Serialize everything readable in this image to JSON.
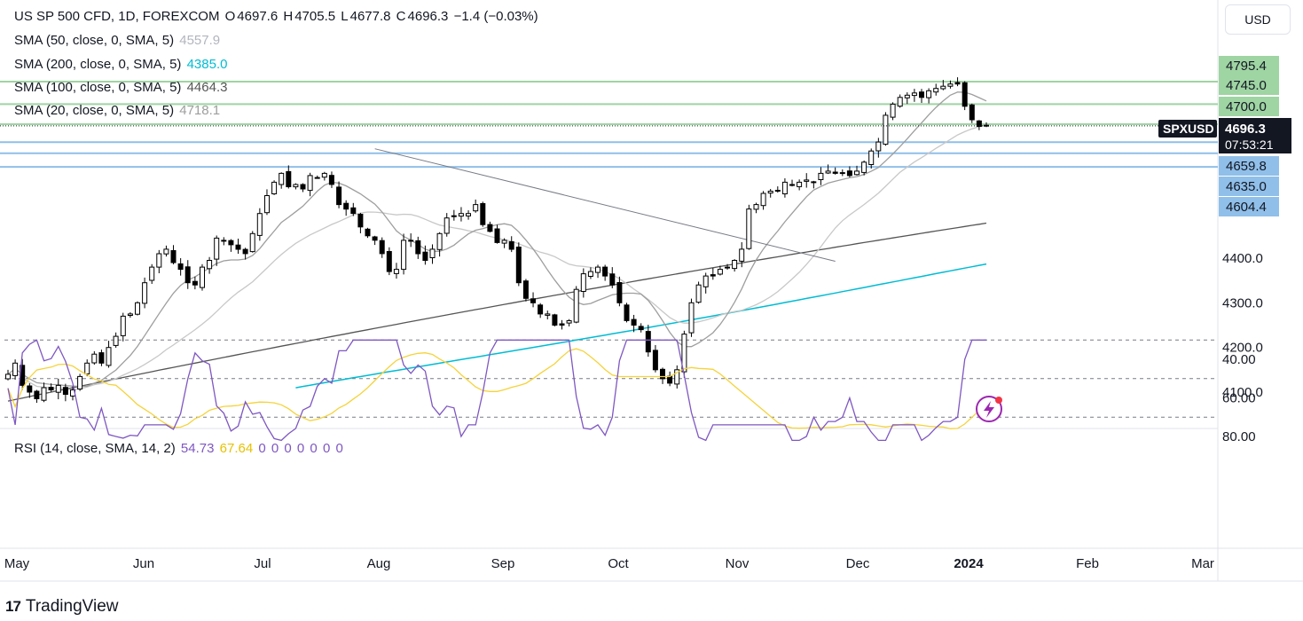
{
  "header": {
    "symbol_title": "US SP 500 CFD, 1D, FOREXCOM",
    "ohlc": [
      {
        "label": "O",
        "value": "4697.6"
      },
      {
        "label": "H",
        "value": "4705.5"
      },
      {
        "label": "L",
        "value": "4677.8"
      },
      {
        "label": "C",
        "value": "4696.3"
      }
    ],
    "change": "−1.4 (−0.03%)"
  },
  "indicators": [
    {
      "label": "SMA (50, close, 0, SMA, 5)",
      "value": "4557.9",
      "color": "#b2b5be"
    },
    {
      "label": "SMA (200, close, 0, SMA, 5)",
      "value": "4385.0",
      "color": "#00bcd4"
    },
    {
      "label": "SMA (100, close, 0, SMA, 5)",
      "value": "4464.3",
      "color": "#555555"
    },
    {
      "label": "SMA (20, close, 0, SMA, 5)",
      "value": "4718.1",
      "color": "#9e9e9e"
    }
  ],
  "rsi_legend": {
    "label": "RSI (14, close, SMA, 14, 2)",
    "rsi_value": "54.73",
    "ma_value": "67.64",
    "zeros": [
      "0",
      "0",
      "0",
      "0",
      "0",
      "0",
      "0"
    ]
  },
  "currency_button": "USD",
  "price_axis": {
    "ticks": [
      "4100.0",
      "4200.0",
      "4300.0",
      "4400.0"
    ],
    "level_badges": [
      {
        "value": "4795.4",
        "color": "#9fd4a3"
      },
      {
        "value": "4745.0",
        "color": "#9fd4a3"
      },
      {
        "value": "4700.0",
        "color": "#9fd4a3"
      },
      {
        "value": "4659.8",
        "color": "#90bfe9"
      },
      {
        "value": "4635.0",
        "color": "#90bfe9"
      },
      {
        "value": "4604.4",
        "color": "#90bfe9"
      }
    ],
    "symbol_tag": "SPXUSD",
    "last_price": "4696.3",
    "countdown": "07:53:21"
  },
  "rsi_axis": {
    "ticks": [
      "80.00",
      "60.00",
      "40.00"
    ]
  },
  "time_axis": {
    "labels": [
      "May",
      "Jun",
      "Jul",
      "Aug",
      "Sep",
      "Oct",
      "Nov",
      "Dec",
      "2024",
      "Feb",
      "Mar"
    ]
  },
  "brand": "TradingView",
  "colors": {
    "up": "#ffffff",
    "down": "#000000",
    "sma20": "#9e9e9e",
    "sma50": "#c8c8c8",
    "sma100": "#555555",
    "sma200": "#00bcd4",
    "rsi": "#7e57c2",
    "rsi_ma": "#f5d33a",
    "support": "#90bfe9",
    "resistance": "#9fd4a3"
  },
  "chart_data": {
    "type": "candlestick",
    "title": "US SP 500 CFD, 1D, FOREXCOM",
    "ylim": [
      4055,
      4830
    ],
    "x_months": [
      "May",
      "Jun",
      "Jul",
      "Aug",
      "Sep",
      "Oct",
      "Nov",
      "Dec",
      "2024",
      "Feb",
      "Mar"
    ],
    "levels": {
      "resistance": [
        4795.4,
        4745.0,
        4700.0
      ],
      "support": [
        4659.8,
        4635.0,
        4604.4
      ]
    },
    "last": 4696.3,
    "trendline": [
      [
        4645,
        4393
      ]
    ],
    "close_anchors": [
      [
        4140,
        4165,
        4115,
        4100,
        4085,
        4110,
        4105,
        4115,
        4095,
        4105,
        4135,
        4165,
        4185,
        4165,
        4200,
        4225,
        4270,
        4275,
        4300,
        4345,
        4380,
        4410,
        4420,
        4390,
        4375,
        4345,
        4340,
        4380,
        4395,
        4445,
        4440,
        4430,
        4420,
        4410,
        4455,
        4500,
        4540,
        4570,
        4590,
        4560,
        4565,
        4555,
        4585,
        4580,
        4590,
        4565,
        4520,
        4510,
        4500,
        4470,
        4450,
        4440,
        4410,
        4370,
        4375,
        4440,
        4440,
        4410,
        4395,
        4420,
        4455,
        4490,
        4495,
        4500,
        4500,
        4520,
        4475,
        4460,
        4435,
        4440,
        4420,
        4345,
        4310,
        4300,
        4275,
        4275,
        4250,
        4250,
        4260,
        4330,
        4365,
        4370,
        4380,
        4360,
        4340,
        4300,
        4260,
        4250,
        4240,
        4190,
        4150,
        4130,
        4120,
        4150,
        4230,
        4300,
        4340,
        4360,
        4360,
        4375,
        4380,
        4395,
        4420,
        4510,
        4520,
        4545,
        4550,
        4550,
        4570,
        4565,
        4570,
        4575,
        4570,
        4590,
        4595,
        4590,
        4590,
        4585,
        4595,
        4615,
        4640,
        4660,
        4720,
        4745,
        4760,
        4765,
        4770,
        4760,
        4775,
        4780,
        4785,
        4790,
        4790,
        4740,
        4710,
        4695,
        4696
      ]
    ],
    "series": [
      {
        "name": "SMA (20, close, 0, SMA, 5)",
        "value": 4718.1
      },
      {
        "name": "SMA (50, close, 0, SMA, 5)",
        "value": 4557.9
      },
      {
        "name": "SMA (100, close, 0, SMA, 5)",
        "value": 4464.3
      },
      {
        "name": "SMA (200, close, 0, SMA, 5)",
        "value": 4385.0
      },
      {
        "name": "RSI (14, close, SMA, 14, 2)",
        "value": 54.73
      },
      {
        "name": "RSI SMA",
        "value": 67.64
      }
    ],
    "rsi_ylim": [
      28,
      84
    ]
  }
}
